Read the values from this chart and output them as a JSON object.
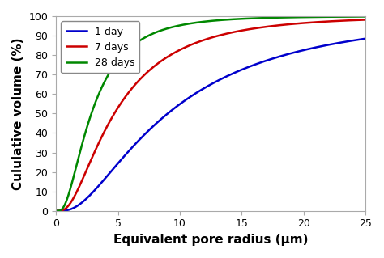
{
  "title": "",
  "xlabel": "Equivalent pore radius (μm)",
  "ylabel": "Cululative volume (%)",
  "xlim": [
    0,
    25
  ],
  "ylim": [
    0,
    100
  ],
  "xticks": [
    0,
    5,
    10,
    15,
    20,
    25
  ],
  "yticks": [
    0,
    10,
    20,
    30,
    40,
    50,
    60,
    70,
    80,
    90,
    100
  ],
  "legend_labels": [
    "1 day",
    "7 days",
    "28 days"
  ],
  "line_colors": [
    "#0000cc",
    "#cc0000",
    "#008800"
  ],
  "line_width": 1.8,
  "curve_1day": {
    "mu": 2.2,
    "sigma": 0.85
  },
  "curve_7days": {
    "mu": 1.55,
    "sigma": 0.8
  },
  "curve_28days": {
    "mu": 1.05,
    "sigma": 0.75
  },
  "background_color": "#ffffff",
  "xlabel_fontsize": 11,
  "ylabel_fontsize": 11,
  "tick_fontsize": 9,
  "legend_fontsize": 9,
  "spine_color": "#aaaaaa"
}
